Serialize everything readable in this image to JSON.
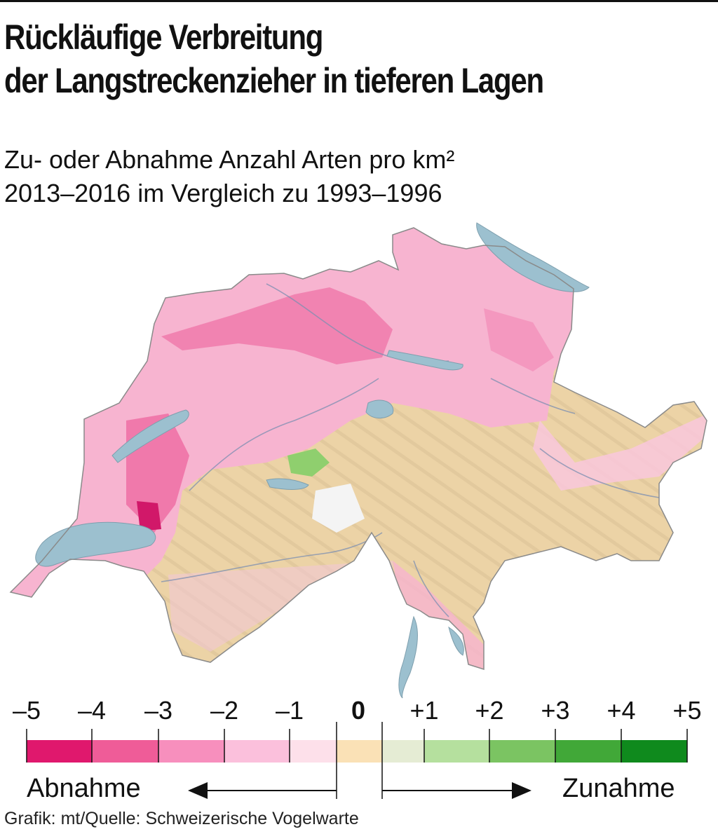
{
  "title_lines": [
    "Rückläufige Verbreitung",
    "der Langstreckenzieher in tieferen Lagen"
  ],
  "subtitle_lines": [
    "Zu- oder Abnahme Anzahl Arten pro km²",
    "2013–2016 im Vergleich zu 1993–1996"
  ],
  "legend": {
    "ticks": [
      "–5",
      "–4",
      "–3",
      "–2",
      "–1",
      "0",
      "+1",
      "+2",
      "+3",
      "+4",
      "+5"
    ],
    "negative_colors": [
      "#e0186d",
      "#ef5c98",
      "#f78fbd",
      "#fbc0dc",
      "#fde0ea"
    ],
    "zero_color": "#fae1b6",
    "positive_colors": [
      "#e5ecd4",
      "#b5e09e",
      "#7bc462",
      "#41a838",
      "#0f8a1d"
    ],
    "decrease_label": "Abnahme",
    "increase_label": "Zunahme"
  },
  "map": {
    "lake_color": "#9cc0cf",
    "terrain_color": "#ecd3a6",
    "decrease_color": "#f5a8c8",
    "strong_decrease_color": "#e83d86",
    "increase_color": "#8fcf6e"
  },
  "source": "Grafik: mt/Quelle: Schweizerische Vogelwarte"
}
